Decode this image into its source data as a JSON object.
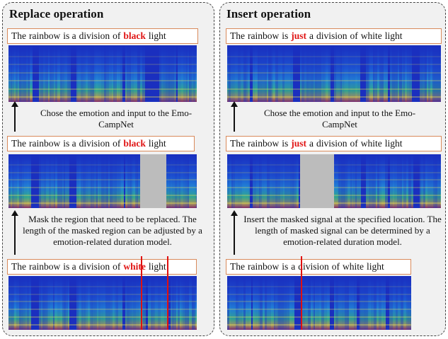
{
  "left": {
    "title": "Replace operation",
    "sentence_top": [
      "The",
      "rainbow",
      "is a",
      "division",
      "of",
      "black",
      "light"
    ],
    "caption_top": "Chose the emotion and input to the Emo-CampNet",
    "sentence_mid": [
      "The",
      "rainbow",
      "is a",
      "division",
      "of",
      "black",
      "light"
    ],
    "caption_bottom": "Mask the region that need to be replaced. The length of the masked region can be adjusted by a emotion-related duration model.",
    "sentence_bottom": [
      "The",
      "rainbow",
      "is a",
      "division",
      "of",
      "white",
      "light"
    ],
    "highlight_index": 5
  },
  "right": {
    "title": "Insert operation",
    "sentence_top": [
      "The",
      "rainbow",
      "is",
      "just",
      "a",
      "division",
      "of",
      "white",
      "light"
    ],
    "caption_top": "Chose the emotion and input to the Emo-CampNet",
    "sentence_mid": [
      "The",
      "rainbow",
      "is",
      "just",
      "a",
      "division",
      "of",
      "white",
      "light"
    ],
    "caption_bottom": "Insert the masked signal at the specified location. The length of masked signal can be determined by a emotion-related duration model.",
    "sentence_bottom": [
      "The",
      "rainbow",
      "is",
      "a",
      "division",
      "of",
      "white",
      "light"
    ],
    "highlight_index": 3
  },
  "colors": {
    "panel_border": "#444444",
    "sentence_border": "#d98a5b",
    "highlight_text": "#e01515",
    "mask_gray": "#bcbcbc",
    "spectrogram_base": "#1a2fbf"
  }
}
